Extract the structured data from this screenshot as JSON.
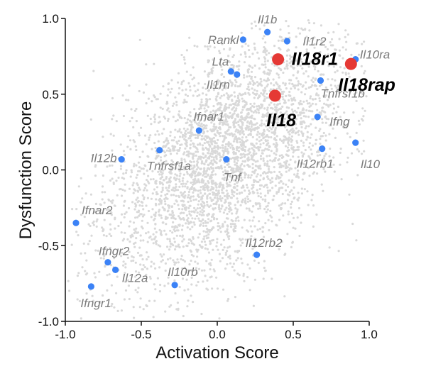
{
  "chart_data": {
    "type": "scatter",
    "xlabel": "Activation Score",
    "ylabel": "Dysfunction Score",
    "xlim": [
      -1.0,
      1.0
    ],
    "ylim": [
      -1.0,
      1.0
    ],
    "x_ticks": [
      "-1.0",
      "-0.5",
      "0.0",
      "0.5",
      "1.0"
    ],
    "y_ticks": [
      "-1.0",
      "-0.5",
      "0.0",
      "0.5",
      "1.0"
    ],
    "grid": false,
    "background_points": "dense light-gray cloud of all genes",
    "colors": {
      "background": "#d9d9d9",
      "gene": "#3b82f6",
      "highlight": "#e53935"
    },
    "points": [
      {
        "label": "Il1b",
        "x": 0.33,
        "y": 0.91,
        "group": "gene"
      },
      {
        "label": "Rankl",
        "x": 0.17,
        "y": 0.86,
        "group": "gene"
      },
      {
        "label": "Il1r2",
        "x": 0.46,
        "y": 0.85,
        "group": "gene"
      },
      {
        "label": "Il10ra",
        "x": 0.91,
        "y": 0.73,
        "group": "gene"
      },
      {
        "label": "Lta",
        "x": 0.09,
        "y": 0.65,
        "group": "gene"
      },
      {
        "label": "Il1rn",
        "x": 0.13,
        "y": 0.63,
        "group": "gene"
      },
      {
        "label": "Tnfrsf1b",
        "x": 0.68,
        "y": 0.59,
        "group": "gene"
      },
      {
        "label": "Ifng",
        "x": 0.66,
        "y": 0.35,
        "group": "gene"
      },
      {
        "label": "Ifnar1",
        "x": -0.12,
        "y": 0.26,
        "group": "gene"
      },
      {
        "label": "Il10",
        "x": 0.91,
        "y": 0.18,
        "group": "gene"
      },
      {
        "label": "Il12rb1",
        "x": 0.69,
        "y": 0.14,
        "group": "gene"
      },
      {
        "label": "Il12b",
        "x": -0.63,
        "y": 0.07,
        "group": "gene"
      },
      {
        "label": "Tnfrsf1a",
        "x": -0.38,
        "y": 0.13,
        "group": "gene"
      },
      {
        "label": "Tnf",
        "x": 0.06,
        "y": 0.07,
        "group": "gene"
      },
      {
        "label": "Ifnar2",
        "x": -0.93,
        "y": -0.35,
        "group": "gene"
      },
      {
        "label": "Il12rb2",
        "x": 0.26,
        "y": -0.56,
        "group": "gene"
      },
      {
        "label": "Ifngr2",
        "x": -0.72,
        "y": -0.61,
        "group": "gene"
      },
      {
        "label": "Il12a",
        "x": -0.67,
        "y": -0.66,
        "group": "gene"
      },
      {
        "label": "Il10rb",
        "x": -0.28,
        "y": -0.76,
        "group": "gene"
      },
      {
        "label": "Ifngr1",
        "x": -0.83,
        "y": -0.77,
        "group": "gene"
      },
      {
        "label": "Il18r1",
        "x": 0.4,
        "y": 0.73,
        "group": "highlight"
      },
      {
        "label": "Il18rap",
        "x": 0.88,
        "y": 0.7,
        "group": "highlight"
      },
      {
        "label": "Il18",
        "x": 0.38,
        "y": 0.49,
        "group": "highlight"
      }
    ]
  }
}
